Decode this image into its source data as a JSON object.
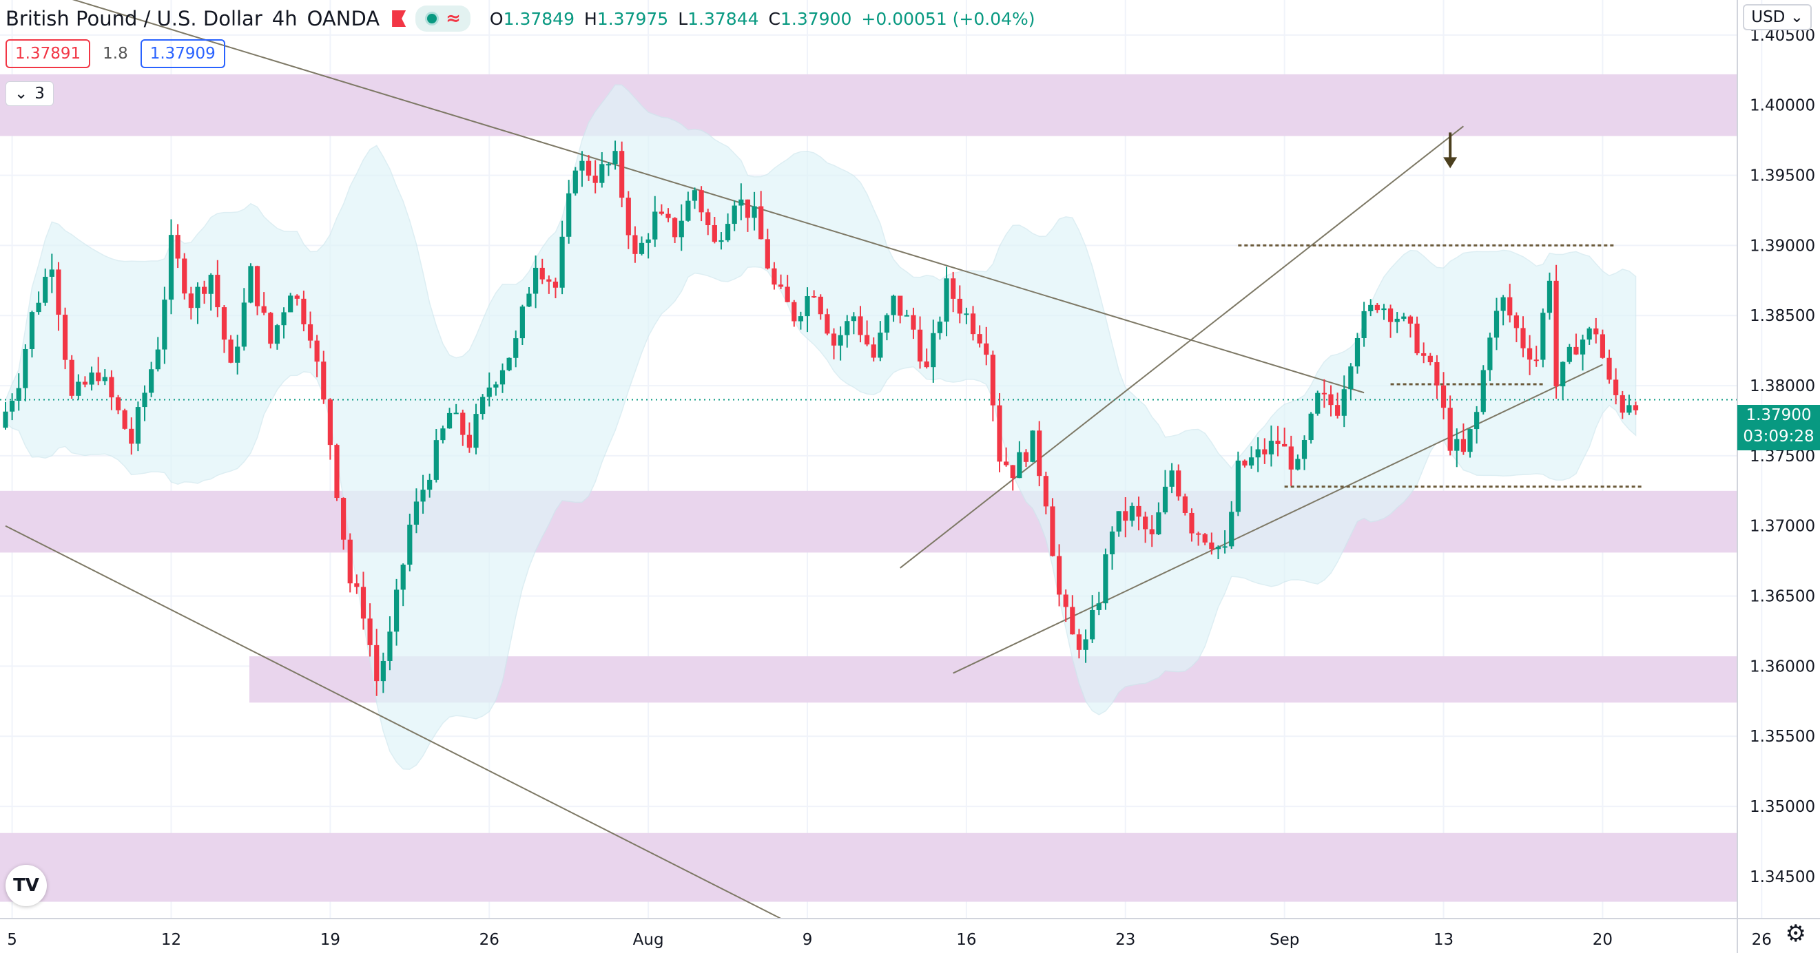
{
  "header": {
    "symbol": "British Pound / U.S. Dollar",
    "interval": "4h",
    "exchange": "OANDA",
    "ohlc": {
      "open_label": "O",
      "open": "1.37849",
      "high_label": "H",
      "high": "1.37975",
      "low_label": "L",
      "low": "1.37844",
      "close_label": "C",
      "close": "1.37900",
      "change": "+0.00051 (+0.04%)"
    }
  },
  "quote": {
    "sell": "1.37891",
    "spread": "1.8",
    "buy": "1.37909"
  },
  "indicators": {
    "count": "3"
  },
  "currency": "USD",
  "last_price": {
    "value": "1.37900",
    "countdown": "03:09:28"
  },
  "icons": {
    "logo": "tradingview-logo-icon",
    "settings": "gear-icon",
    "flag": "flag-icon",
    "dot": "live-dot-icon",
    "chevron": "chevron-down-icon"
  },
  "colors": {
    "up": "#089981",
    "down": "#f23645",
    "zone": "#e8d3ec",
    "band": "#e0f4f8"
  },
  "chart_data": {
    "type": "candlestick",
    "ylim": [
      1.342,
      1.4075
    ],
    "x_ticks": [
      {
        "i": 1,
        "label": "5"
      },
      {
        "i": 25,
        "label": "12"
      },
      {
        "i": 49,
        "label": "19"
      },
      {
        "i": 73,
        "label": "26"
      },
      {
        "i": 97,
        "label": "Aug"
      },
      {
        "i": 121,
        "label": "9"
      },
      {
        "i": 145,
        "label": "16"
      },
      {
        "i": 169,
        "label": "23"
      },
      {
        "i": 193,
        "label": "Sep"
      },
      {
        "i": 217,
        "label": "13"
      },
      {
        "i": 241,
        "label": "20"
      },
      {
        "i": 265,
        "label": "26"
      }
    ],
    "y_ticks": [
      "1.40500",
      "1.40000",
      "1.39500",
      "1.39000",
      "1.38500",
      "1.38000",
      "1.37500",
      "1.37000",
      "1.36500",
      "1.36000",
      "1.35500",
      "1.35000",
      "1.34500"
    ],
    "zones": [
      [
        1.3978,
        1.4022
      ],
      [
        1.3681,
        1.3725
      ],
      [
        1.3574,
        1.3607
      ],
      [
        1.3432,
        1.3481
      ]
    ],
    "anchors": [
      [
        0,
        1.377
      ],
      [
        3,
        1.3805
      ],
      [
        5,
        1.385
      ],
      [
        8,
        1.389
      ],
      [
        11,
        1.379
      ],
      [
        15,
        1.381
      ],
      [
        18,
        1.378
      ],
      [
        20,
        1.376
      ],
      [
        24,
        1.383
      ],
      [
        26,
        1.39
      ],
      [
        29,
        1.386
      ],
      [
        32,
        1.388
      ],
      [
        35,
        1.381
      ],
      [
        38,
        1.388
      ],
      [
        41,
        1.383
      ],
      [
        44,
        1.387
      ],
      [
        47,
        1.384
      ],
      [
        50,
        1.376
      ],
      [
        53,
        1.366
      ],
      [
        55,
        1.364
      ],
      [
        57,
        1.359
      ],
      [
        59,
        1.362
      ],
      [
        62,
        1.37
      ],
      [
        65,
        1.374
      ],
      [
        68,
        1.378
      ],
      [
        71,
        1.376
      ],
      [
        74,
        1.38
      ],
      [
        78,
        1.383
      ],
      [
        81,
        1.389
      ],
      [
        84,
        1.387
      ],
      [
        87,
        1.396
      ],
      [
        90,
        1.395
      ],
      [
        93,
        1.396
      ],
      [
        96,
        1.389
      ],
      [
        99,
        1.392
      ],
      [
        102,
        1.391
      ],
      [
        105,
        1.394
      ],
      [
        108,
        1.39
      ],
      [
        111,
        1.3935
      ],
      [
        114,
        1.392
      ],
      [
        117,
        1.387
      ],
      [
        120,
        1.385
      ],
      [
        123,
        1.387
      ],
      [
        126,
        1.383
      ],
      [
        129,
        1.385
      ],
      [
        132,
        1.382
      ],
      [
        135,
        1.386
      ],
      [
        138,
        1.384
      ],
      [
        140,
        1.381
      ],
      [
        143,
        1.387
      ],
      [
        146,
        1.385
      ],
      [
        149,
        1.383
      ],
      [
        151,
        1.375
      ],
      [
        153,
        1.374
      ],
      [
        156,
        1.376
      ],
      [
        158,
        1.372
      ],
      [
        160,
        1.365
      ],
      [
        162,
        1.362
      ],
      [
        164,
        1.3615
      ],
      [
        166,
        1.365
      ],
      [
        168,
        1.37
      ],
      [
        171,
        1.371
      ],
      [
        174,
        1.369
      ],
      [
        177,
        1.374
      ],
      [
        180,
        1.37
      ],
      [
        183,
        1.369
      ],
      [
        185,
        1.368
      ],
      [
        187,
        1.374
      ],
      [
        190,
        1.375
      ],
      [
        193,
        1.376
      ],
      [
        196,
        1.374
      ],
      [
        199,
        1.379
      ],
      [
        202,
        1.3785
      ],
      [
        205,
        1.384
      ],
      [
        208,
        1.386
      ],
      [
        211,
        1.385
      ],
      [
        214,
        1.383
      ],
      [
        217,
        1.38
      ],
      [
        219,
        1.376
      ],
      [
        221,
        1.375
      ],
      [
        223,
        1.378
      ],
      [
        225,
        1.384
      ],
      [
        227,
        1.386
      ],
      [
        230,
        1.383
      ],
      [
        232,
        1.382
      ],
      [
        234,
        1.388
      ],
      [
        235,
        1.38
      ],
      [
        238,
        1.383
      ],
      [
        241,
        1.384
      ],
      [
        243,
        1.38
      ],
      [
        245,
        1.3785
      ],
      [
        246,
        1.379
      ]
    ],
    "last_index": 246,
    "trendlines": [
      {
        "i1": 0,
        "p1": 1.409,
        "i2": 205,
        "p2": 1.3795
      },
      {
        "i1": 0,
        "p1": 1.37,
        "i2": 117,
        "p2": 1.342
      },
      {
        "i1": 135,
        "p1": 1.367,
        "i2": 220,
        "p2": 1.3985
      },
      {
        "i1": 143,
        "p1": 1.3595,
        "i2": 241,
        "p2": 1.3815
      }
    ],
    "dashed": [
      {
        "i1": 186,
        "i2": 243,
        "p": 1.39
      },
      {
        "i1": 209,
        "i2": 232,
        "p": 1.3801
      },
      {
        "i1": 193,
        "i2": 247,
        "p": 1.3728
      }
    ],
    "marker": {
      "i": 218,
      "p": 1.3955
    },
    "last_line": 1.379
  }
}
